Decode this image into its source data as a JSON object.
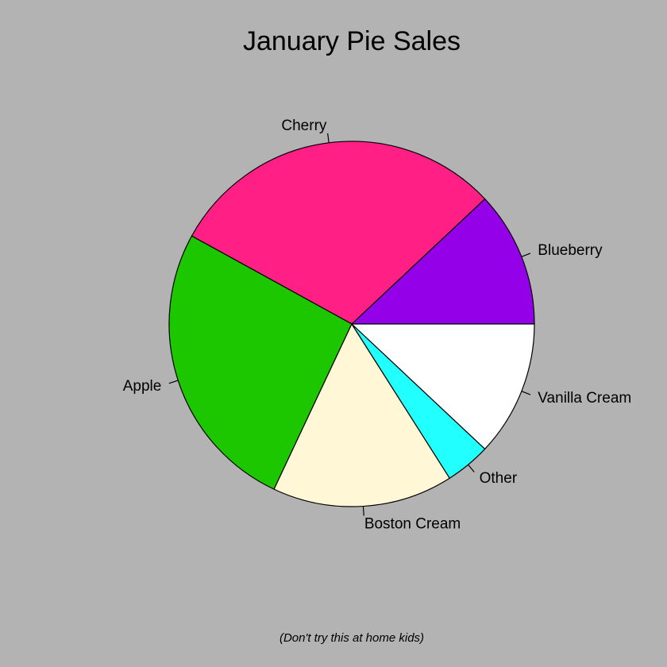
{
  "chart_data": {
    "type": "pie",
    "title": "January Pie Sales",
    "caption": "(Don't try this at home kids)",
    "background_color": "#b3b3b3",
    "start_angle_deg": 0,
    "direction": "counterclockwise",
    "slices": [
      {
        "label": "Blueberry",
        "value": 12,
        "color": "#9400e8"
      },
      {
        "label": "Cherry",
        "value": 30,
        "color": "#ff1f85"
      },
      {
        "label": "Apple",
        "value": 26,
        "color": "#1cc700"
      },
      {
        "label": "Boston Cream",
        "value": 16,
        "color": "#fff7d6"
      },
      {
        "label": "Other",
        "value": 4,
        "color": "#21ffff"
      },
      {
        "label": "Vanilla Cream",
        "value": 12,
        "color": "#ffffff"
      }
    ]
  }
}
